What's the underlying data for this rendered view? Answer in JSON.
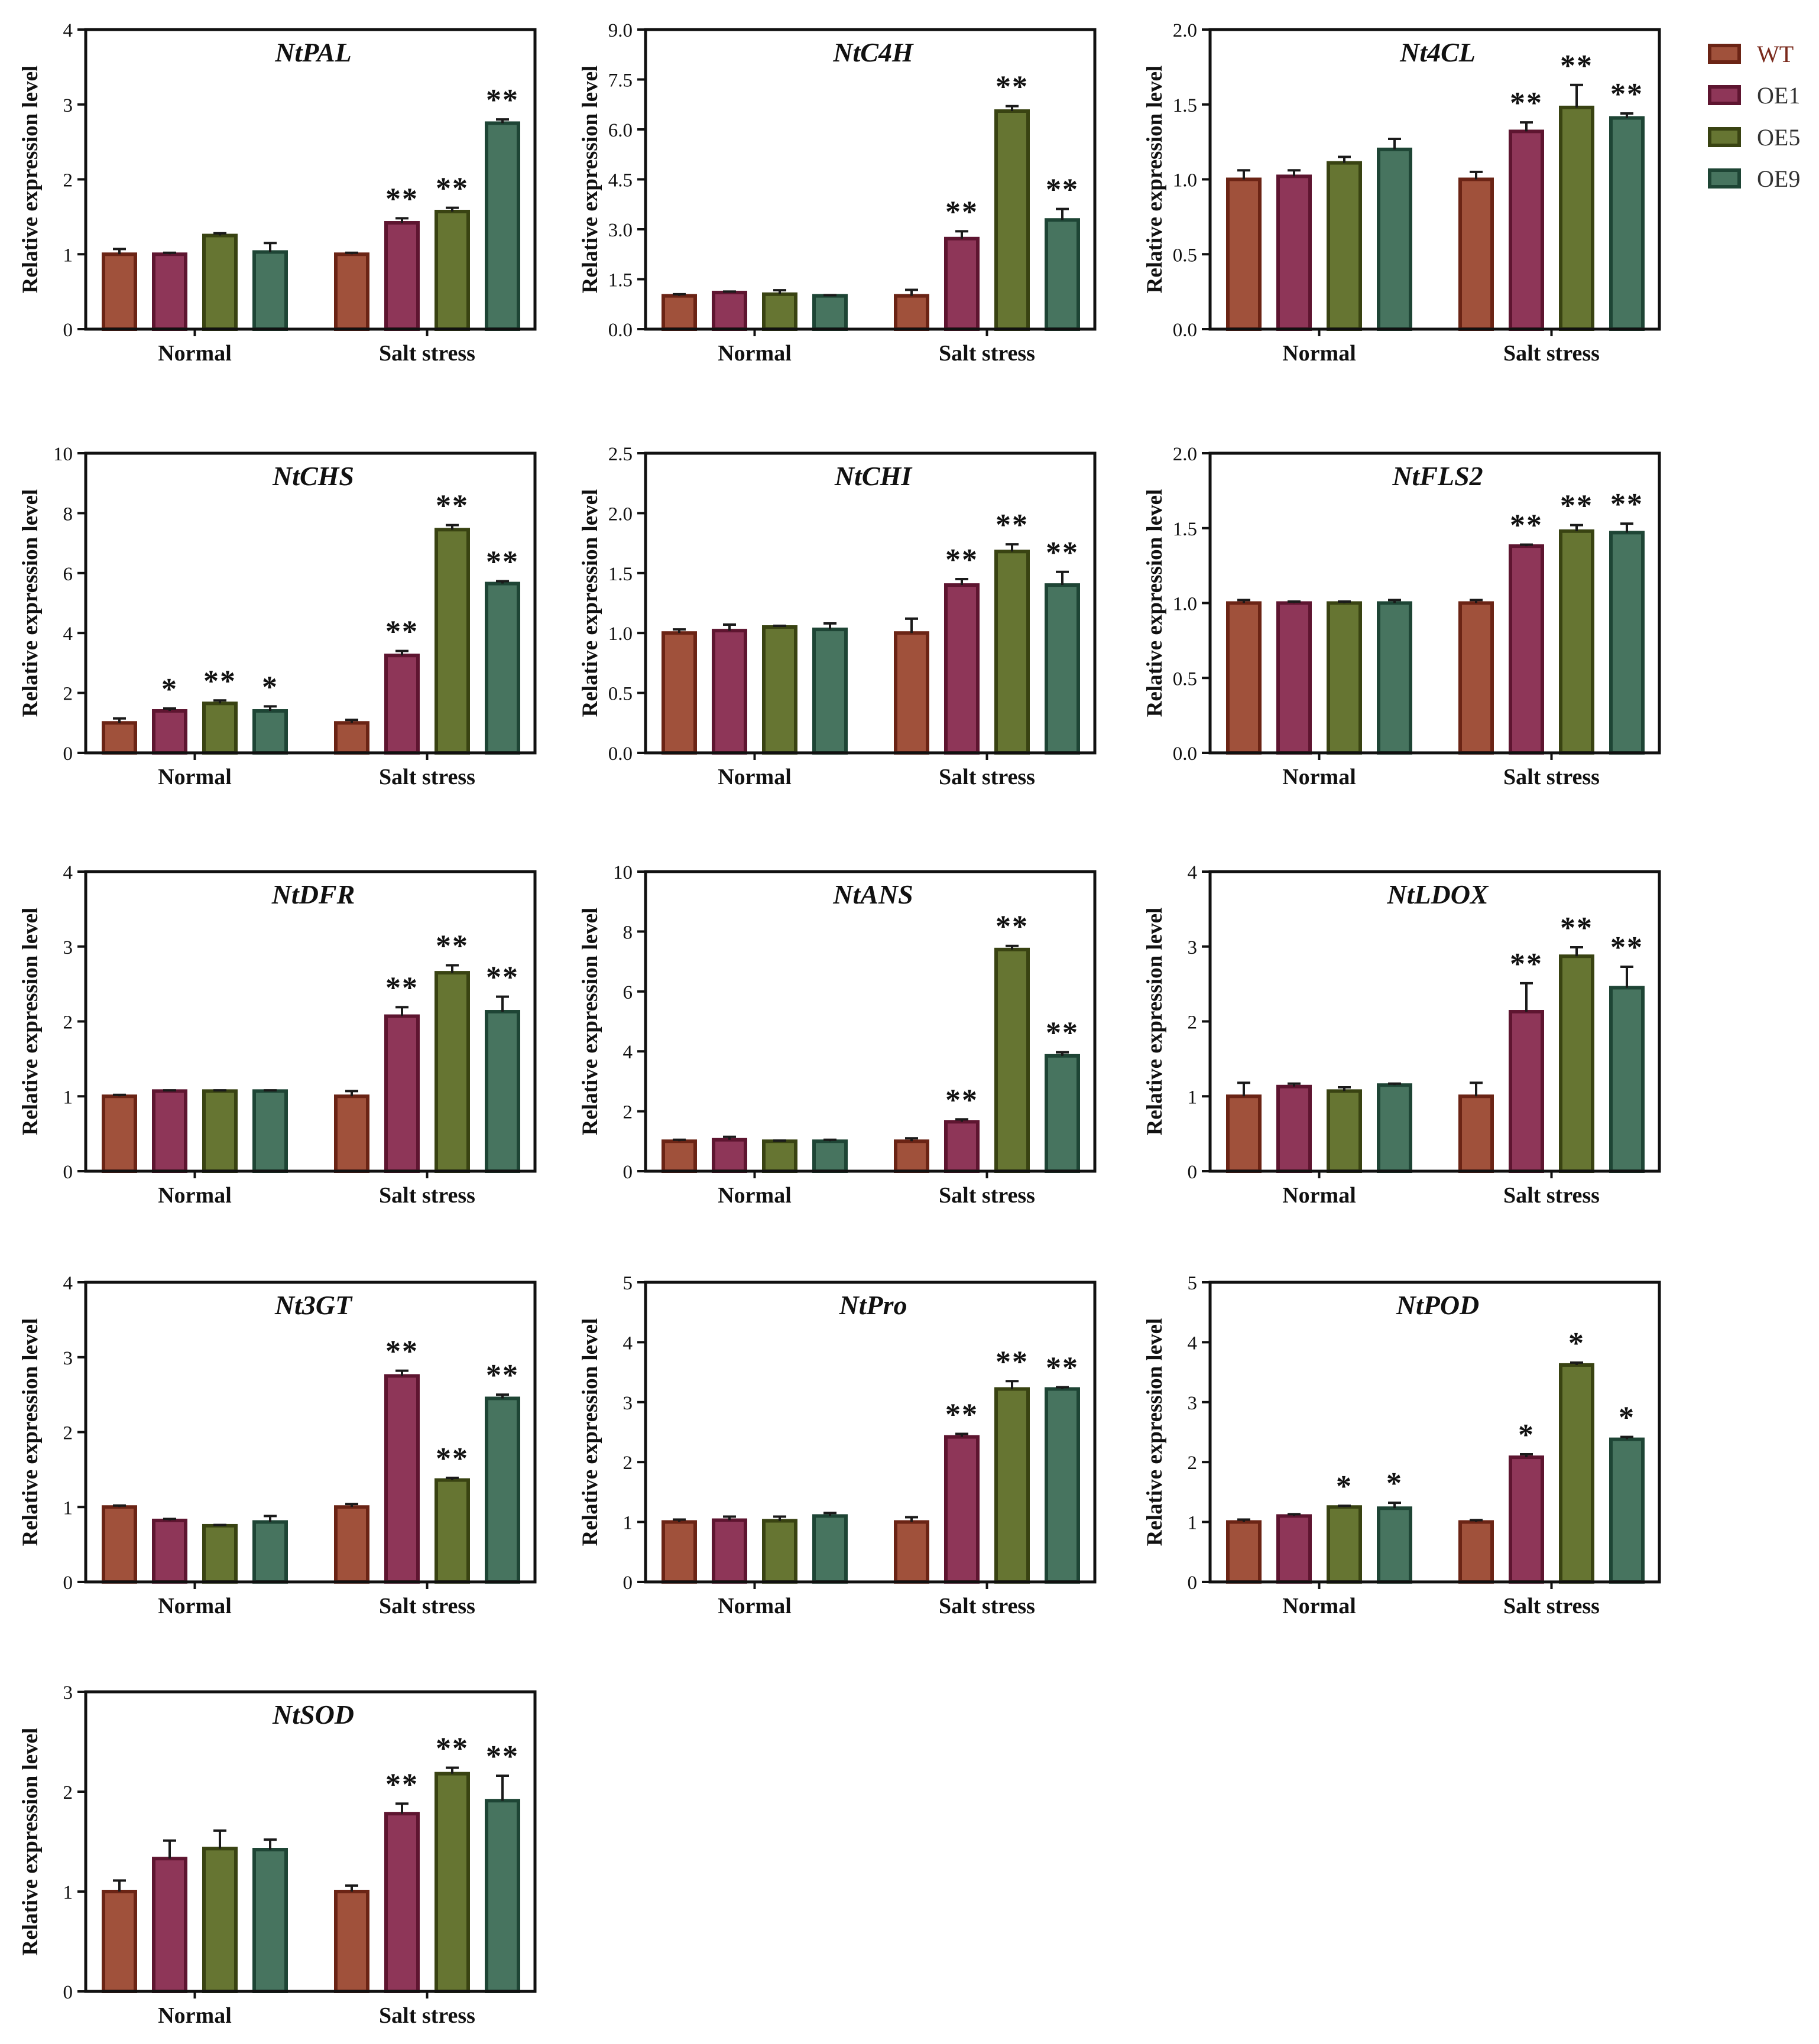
{
  "legend": {
    "items": [
      {
        "label": "WT",
        "fill": "#A0513B",
        "edge": "#6B2415",
        "text_color": "#7A2A1C"
      },
      {
        "label": "OE1",
        "fill": "#8E3658",
        "edge": "#5E1530",
        "text_color": "#333333"
      },
      {
        "label": "OE5",
        "fill": "#667532",
        "edge": "#394312",
        "text_color": "#333333"
      },
      {
        "label": "OE9",
        "fill": "#47745F",
        "edge": "#1E4535",
        "text_color": "#333333"
      }
    ]
  },
  "chart_data": [
    {
      "type": "bar",
      "title": "NtPAL",
      "ylabel": "Relative expression level",
      "categories": [
        "Normal",
        "Salt stress"
      ],
      "ylim": [
        0,
        4
      ],
      "yticks": [
        "0",
        "1",
        "2",
        "3",
        "4"
      ],
      "series": [
        {
          "name": "WT",
          "values": [
            1.0,
            1.0
          ],
          "errors": [
            0.07,
            0.02
          ]
        },
        {
          "name": "OE1",
          "values": [
            1.0,
            1.42
          ],
          "errors": [
            0.02,
            0.06
          ]
        },
        {
          "name": "OE5",
          "values": [
            1.25,
            1.57
          ],
          "errors": [
            0.03,
            0.05
          ]
        },
        {
          "name": "OE9",
          "values": [
            1.03,
            2.75
          ],
          "errors": [
            0.12,
            0.05
          ]
        }
      ],
      "significance": [
        [
          "",
          ""
        ],
        [
          "",
          "**"
        ],
        [
          "",
          "**"
        ],
        [
          "",
          "**"
        ]
      ]
    },
    {
      "type": "bar",
      "title": "NtC4H",
      "ylabel": "Relative expression level",
      "categories": [
        "Normal",
        "Salt stress"
      ],
      "ylim": [
        0,
        9
      ],
      "yticks": [
        "0.0",
        "1.5",
        "3.0",
        "4.5",
        "6.0",
        "7.5",
        "9.0"
      ],
      "series": [
        {
          "name": "WT",
          "values": [
            1.0,
            1.0
          ],
          "errors": [
            0.05,
            0.18
          ]
        },
        {
          "name": "OE1",
          "values": [
            1.1,
            2.72
          ],
          "errors": [
            0.03,
            0.22
          ]
        },
        {
          "name": "OE5",
          "values": [
            1.05,
            6.55
          ],
          "errors": [
            0.12,
            0.15
          ]
        },
        {
          "name": "OE9",
          "values": [
            1.0,
            3.28
          ],
          "errors": [
            0.02,
            0.33
          ]
        }
      ],
      "significance": [
        [
          "",
          ""
        ],
        [
          "",
          "**"
        ],
        [
          "",
          "**"
        ],
        [
          "",
          "**"
        ]
      ]
    },
    {
      "type": "bar",
      "title": "Nt4CL",
      "ylabel": "Relative expression level",
      "categories": [
        "Normal",
        "Salt stress"
      ],
      "ylim": [
        0,
        2
      ],
      "yticks": [
        "0.0",
        "0.5",
        "1.0",
        "1.5",
        "2.0"
      ],
      "series": [
        {
          "name": "WT",
          "values": [
            1.0,
            1.0
          ],
          "errors": [
            0.06,
            0.05
          ]
        },
        {
          "name": "OE1",
          "values": [
            1.02,
            1.32
          ],
          "errors": [
            0.04,
            0.06
          ]
        },
        {
          "name": "OE5",
          "values": [
            1.11,
            1.48
          ],
          "errors": [
            0.04,
            0.15
          ]
        },
        {
          "name": "OE9",
          "values": [
            1.2,
            1.41
          ],
          "errors": [
            0.07,
            0.03
          ]
        }
      ],
      "significance": [
        [
          "",
          ""
        ],
        [
          "",
          "**"
        ],
        [
          "",
          "**"
        ],
        [
          "",
          "**"
        ]
      ]
    },
    {
      "type": "bar",
      "title": "NtCHS",
      "ylabel": "Relative expression level",
      "categories": [
        "Normal",
        "Salt stress"
      ],
      "ylim": [
        0,
        10
      ],
      "yticks": [
        "0",
        "2",
        "4",
        "6",
        "8",
        "10"
      ],
      "series": [
        {
          "name": "WT",
          "values": [
            1.0,
            1.0
          ],
          "errors": [
            0.15,
            0.1
          ]
        },
        {
          "name": "OE1",
          "values": [
            1.4,
            3.25
          ],
          "errors": [
            0.08,
            0.15
          ]
        },
        {
          "name": "OE5",
          "values": [
            1.65,
            7.45
          ],
          "errors": [
            0.1,
            0.15
          ]
        },
        {
          "name": "OE9",
          "values": [
            1.4,
            5.65
          ],
          "errors": [
            0.15,
            0.08
          ]
        }
      ],
      "significance": [
        [
          "",
          ""
        ],
        [
          "*",
          "**"
        ],
        [
          "**",
          "**"
        ],
        [
          "*",
          "**"
        ]
      ]
    },
    {
      "type": "bar",
      "title": "NtCHI",
      "ylabel": "Relative expression level",
      "categories": [
        "Normal",
        "Salt stress"
      ],
      "ylim": [
        0,
        2.5
      ],
      "yticks": [
        "0.0",
        "0.5",
        "1.0",
        "1.5",
        "2.0",
        "2.5"
      ],
      "series": [
        {
          "name": "WT",
          "values": [
            1.0,
            1.0
          ],
          "errors": [
            0.03,
            0.12
          ]
        },
        {
          "name": "OE1",
          "values": [
            1.02,
            1.4
          ],
          "errors": [
            0.05,
            0.05
          ]
        },
        {
          "name": "OE5",
          "values": [
            1.05,
            1.68
          ],
          "errors": [
            0.01,
            0.06
          ]
        },
        {
          "name": "OE9",
          "values": [
            1.03,
            1.4
          ],
          "errors": [
            0.05,
            0.11
          ]
        }
      ],
      "significance": [
        [
          "",
          ""
        ],
        [
          "",
          "**"
        ],
        [
          "",
          "**"
        ],
        [
          "",
          "**"
        ]
      ]
    },
    {
      "type": "bar",
      "title": "NtFLS2",
      "ylabel": "Relative expression level",
      "categories": [
        "Normal",
        "Salt stress"
      ],
      "ylim": [
        0,
        2
      ],
      "yticks": [
        "0.0",
        "0.5",
        "1.0",
        "1.5",
        "2.0"
      ],
      "series": [
        {
          "name": "WT",
          "values": [
            1.0,
            1.0
          ],
          "errors": [
            0.02,
            0.02
          ]
        },
        {
          "name": "OE1",
          "values": [
            1.0,
            1.38
          ],
          "errors": [
            0.01,
            0.01
          ]
        },
        {
          "name": "OE5",
          "values": [
            1.0,
            1.48
          ],
          "errors": [
            0.01,
            0.04
          ]
        },
        {
          "name": "OE9",
          "values": [
            1.0,
            1.47
          ],
          "errors": [
            0.02,
            0.06
          ]
        }
      ],
      "significance": [
        [
          "",
          ""
        ],
        [
          "",
          "**"
        ],
        [
          "",
          "**"
        ],
        [
          "",
          "**"
        ]
      ]
    },
    {
      "type": "bar",
      "title": "NtDFR",
      "ylabel": "Relative expression level",
      "categories": [
        "Normal",
        "Salt stress"
      ],
      "ylim": [
        0,
        4
      ],
      "yticks": [
        "0",
        "1",
        "2",
        "3",
        "4"
      ],
      "series": [
        {
          "name": "WT",
          "values": [
            1.0,
            1.0
          ],
          "errors": [
            0.02,
            0.07
          ]
        },
        {
          "name": "OE1",
          "values": [
            1.07,
            2.07
          ],
          "errors": [
            0.01,
            0.12
          ]
        },
        {
          "name": "OE5",
          "values": [
            1.07,
            2.65
          ],
          "errors": [
            0.01,
            0.1
          ]
        },
        {
          "name": "OE9",
          "values": [
            1.07,
            2.13
          ],
          "errors": [
            0.01,
            0.2
          ]
        }
      ],
      "significance": [
        [
          "",
          ""
        ],
        [
          "",
          "**"
        ],
        [
          "",
          "**"
        ],
        [
          "",
          "**"
        ]
      ]
    },
    {
      "type": "bar",
      "title": "NtANS",
      "ylabel": "Relative expression level",
      "categories": [
        "Normal",
        "Salt stress"
      ],
      "ylim": [
        0,
        10
      ],
      "yticks": [
        "0",
        "2",
        "4",
        "6",
        "8",
        "10"
      ],
      "series": [
        {
          "name": "WT",
          "values": [
            1.0,
            1.0
          ],
          "errors": [
            0.05,
            0.1
          ]
        },
        {
          "name": "OE1",
          "values": [
            1.05,
            1.65
          ],
          "errors": [
            0.1,
            0.08
          ]
        },
        {
          "name": "OE5",
          "values": [
            1.0,
            7.4
          ],
          "errors": [
            0.02,
            0.12
          ]
        },
        {
          "name": "OE9",
          "values": [
            1.0,
            3.85
          ],
          "errors": [
            0.05,
            0.12
          ]
        }
      ],
      "significance": [
        [
          "",
          ""
        ],
        [
          "",
          "**"
        ],
        [
          "",
          "**"
        ],
        [
          "",
          "**"
        ]
      ]
    },
    {
      "type": "bar",
      "title": "NtLDOX",
      "ylabel": "Relative expression level",
      "categories": [
        "Normal",
        "Salt stress"
      ],
      "ylim": [
        0,
        4
      ],
      "yticks": [
        "0",
        "1",
        "2",
        "3",
        "4"
      ],
      "series": [
        {
          "name": "WT",
          "values": [
            1.0,
            1.0
          ],
          "errors": [
            0.18,
            0.18
          ]
        },
        {
          "name": "OE1",
          "values": [
            1.13,
            2.13
          ],
          "errors": [
            0.04,
            0.38
          ]
        },
        {
          "name": "OE5",
          "values": [
            1.07,
            2.87
          ],
          "errors": [
            0.05,
            0.12
          ]
        },
        {
          "name": "OE9",
          "values": [
            1.15,
            2.45
          ],
          "errors": [
            0.02,
            0.28
          ]
        }
      ],
      "significance": [
        [
          "",
          ""
        ],
        [
          "",
          "**"
        ],
        [
          "",
          "**"
        ],
        [
          "",
          "**"
        ]
      ]
    },
    {
      "type": "bar",
      "title": "Nt3GT",
      "ylabel": "Relative expression level",
      "categories": [
        "Normal",
        "Salt stress"
      ],
      "ylim": [
        0,
        4
      ],
      "yticks": [
        "0",
        "1",
        "2",
        "3",
        "4"
      ],
      "series": [
        {
          "name": "WT",
          "values": [
            1.0,
            1.0
          ],
          "errors": [
            0.02,
            0.04
          ]
        },
        {
          "name": "OE1",
          "values": [
            0.82,
            2.75
          ],
          "errors": [
            0.02,
            0.07
          ]
        },
        {
          "name": "OE5",
          "values": [
            0.75,
            1.36
          ],
          "errors": [
            0.01,
            0.03
          ]
        },
        {
          "name": "OE9",
          "values": [
            0.8,
            2.45
          ],
          "errors": [
            0.08,
            0.05
          ]
        }
      ],
      "significance": [
        [
          "",
          ""
        ],
        [
          "",
          "**"
        ],
        [
          "",
          "**"
        ],
        [
          "",
          "**"
        ]
      ]
    },
    {
      "type": "bar",
      "title": "NtPro",
      "ylabel": "Relative expression level",
      "categories": [
        "Normal",
        "Salt stress"
      ],
      "ylim": [
        0,
        5
      ],
      "yticks": [
        "0",
        "1",
        "2",
        "3",
        "4",
        "5"
      ],
      "series": [
        {
          "name": "WT",
          "values": [
            1.0,
            1.0
          ],
          "errors": [
            0.04,
            0.08
          ]
        },
        {
          "name": "OE1",
          "values": [
            1.03,
            2.42
          ],
          "errors": [
            0.06,
            0.05
          ]
        },
        {
          "name": "OE5",
          "values": [
            1.02,
            3.22
          ],
          "errors": [
            0.07,
            0.13
          ]
        },
        {
          "name": "OE9",
          "values": [
            1.1,
            3.22
          ],
          "errors": [
            0.05,
            0.03
          ]
        }
      ],
      "significance": [
        [
          "",
          ""
        ],
        [
          "",
          "**"
        ],
        [
          "",
          "**"
        ],
        [
          "",
          "**"
        ]
      ]
    },
    {
      "type": "bar",
      "title": "NtPOD",
      "ylabel": "Relative expression level",
      "categories": [
        "Normal",
        "Salt stress"
      ],
      "ylim": [
        0,
        5
      ],
      "yticks": [
        "0",
        "1",
        "2",
        "3",
        "4",
        "5"
      ],
      "series": [
        {
          "name": "WT",
          "values": [
            1.0,
            1.0
          ],
          "errors": [
            0.04,
            0.03
          ]
        },
        {
          "name": "OE1",
          "values": [
            1.1,
            2.08
          ],
          "errors": [
            0.03,
            0.05
          ]
        },
        {
          "name": "OE5",
          "values": [
            1.25,
            3.62
          ],
          "errors": [
            0.02,
            0.04
          ]
        },
        {
          "name": "OE9",
          "values": [
            1.23,
            2.38
          ],
          "errors": [
            0.09,
            0.04
          ]
        }
      ],
      "significance": [
        [
          "",
          ""
        ],
        [
          "",
          "*"
        ],
        [
          "*",
          "*"
        ],
        [
          "*",
          "*"
        ]
      ]
    },
    {
      "type": "bar",
      "title": "NtSOD",
      "ylabel": "Relative expression level",
      "categories": [
        "Normal",
        "Salt stress"
      ],
      "ylim": [
        0,
        3
      ],
      "yticks": [
        "0",
        "1",
        "2",
        "3"
      ],
      "series": [
        {
          "name": "WT",
          "values": [
            1.0,
            1.0
          ],
          "errors": [
            0.11,
            0.06
          ]
        },
        {
          "name": "OE1",
          "values": [
            1.33,
            1.78
          ],
          "errors": [
            0.18,
            0.1
          ]
        },
        {
          "name": "OE5",
          "values": [
            1.43,
            2.18
          ],
          "errors": [
            0.18,
            0.06
          ]
        },
        {
          "name": "OE9",
          "values": [
            1.42,
            1.91
          ],
          "errors": [
            0.1,
            0.25
          ]
        }
      ],
      "significance": [
        [
          "",
          ""
        ],
        [
          "",
          "**"
        ],
        [
          "",
          "**"
        ],
        [
          "",
          "**"
        ]
      ]
    }
  ]
}
